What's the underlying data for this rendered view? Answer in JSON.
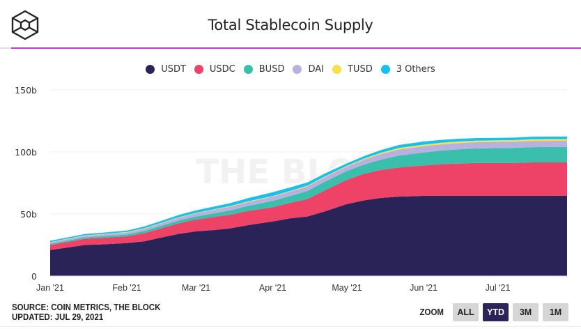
{
  "header": {
    "title": "Total Stablecoin Supply",
    "logo": "the-block-cube-logo"
  },
  "watermark": "THE BLOCK",
  "footer": {
    "source": "SOURCE: COIN METRICS, THE BLOCK",
    "updated": "UPDATED: JUL 29, 2021"
  },
  "zoom": {
    "label": "ZOOM",
    "buttons": [
      {
        "label": "ALL",
        "active": false
      },
      {
        "label": "YTD",
        "active": true
      },
      {
        "label": "3M",
        "active": false
      },
      {
        "label": "1M",
        "active": false
      }
    ]
  },
  "chart_data": {
    "type": "area",
    "stacked": true,
    "title": "Total Stablecoin Supply",
    "xlabel": "",
    "ylabel": "",
    "ylim": [
      0,
      150
    ],
    "y_ticks": [
      0,
      50,
      100,
      150
    ],
    "y_tick_labels": [
      "0",
      "50b",
      "100b",
      "150b"
    ],
    "x_tick_labels": [
      "Jan '21",
      "Feb '21",
      "Mar '21",
      "Apr '21",
      "May '21",
      "Jun '21",
      "Jul '21"
    ],
    "x_tick_days": [
      0,
      31,
      59,
      90,
      120,
      151,
      181
    ],
    "x_range_days": [
      0,
      209
    ],
    "grid": "horizontal",
    "legend_position": "top",
    "x_days": [
      0,
      7,
      14,
      21,
      31,
      38,
      45,
      52,
      59,
      66,
      73,
      80,
      90,
      97,
      104,
      111,
      120,
      127,
      134,
      141,
      151,
      158,
      165,
      172,
      181,
      188,
      195,
      202,
      209
    ],
    "series": [
      {
        "name": "USDT",
        "color": "#2a2358",
        "values": [
          21,
          23,
          25,
          25.5,
          26.5,
          28,
          31,
          34,
          36,
          37,
          38.5,
          41,
          44,
          46.5,
          48,
          52,
          58,
          61,
          63,
          64,
          64.6,
          64.6,
          64.6,
          64.6,
          64.6,
          64.6,
          64.6,
          64.6,
          64.6
        ]
      },
      {
        "name": "USDC",
        "color": "#ee4266",
        "values": [
          4,
          4.5,
          5,
          5.3,
          5.5,
          6.5,
          7.5,
          8.5,
          9.5,
          10.5,
          11,
          11.5,
          11.5,
          12.5,
          14,
          17,
          19.5,
          21.5,
          22.5,
          23.5,
          24.5,
          25.5,
          26,
          26.5,
          26.5,
          26.5,
          27,
          27,
          27
        ]
      },
      {
        "name": "BUSD",
        "color": "#3bbfad",
        "values": [
          1,
          1.1,
          1.2,
          1.3,
          1.5,
          1.8,
          2,
          2.3,
          2.5,
          3,
          3.5,
          4,
          5,
          5.5,
          6.5,
          7,
          7.2,
          7.4,
          8.5,
          9.5,
          10.5,
          11,
          11.5,
          11.7,
          12,
          12.2,
          12.3,
          12.4,
          12.4
        ]
      },
      {
        "name": "DAI",
        "color": "#b8b0e0",
        "values": [
          1.1,
          1.2,
          1.3,
          1.4,
          1.6,
          1.8,
          2,
          2.2,
          2.5,
          2.8,
          3,
          3.2,
          3.5,
          3.6,
          3.7,
          3.6,
          3.5,
          4,
          4.5,
          5,
          5,
          5,
          5,
          5,
          5,
          5,
          5,
          5,
          5
        ]
      },
      {
        "name": "TUSD",
        "color": "#f7e04a",
        "values": [
          0.3,
          0.3,
          0.3,
          0.3,
          0.4,
          0.4,
          0.4,
          0.4,
          0.4,
          0.4,
          0.5,
          0.5,
          0.5,
          0.5,
          0.6,
          0.6,
          0.6,
          0.8,
          1,
          1.2,
          1.3,
          1.3,
          1.3,
          1.3,
          1.3,
          1.3,
          1.4,
          1.4,
          1.4
        ]
      },
      {
        "name": "3 Others",
        "color": "#16c0ef",
        "values": [
          1,
          1,
          1.1,
          1.1,
          1.2,
          1.4,
          1.6,
          1.8,
          2,
          2.2,
          2.4,
          2.6,
          3,
          2.8,
          2.6,
          2.4,
          2,
          2,
          2.2,
          2.4,
          2.5,
          2.3,
          2.2,
          2.1,
          2,
          2,
          2,
          2,
          2
        ]
      }
    ]
  }
}
